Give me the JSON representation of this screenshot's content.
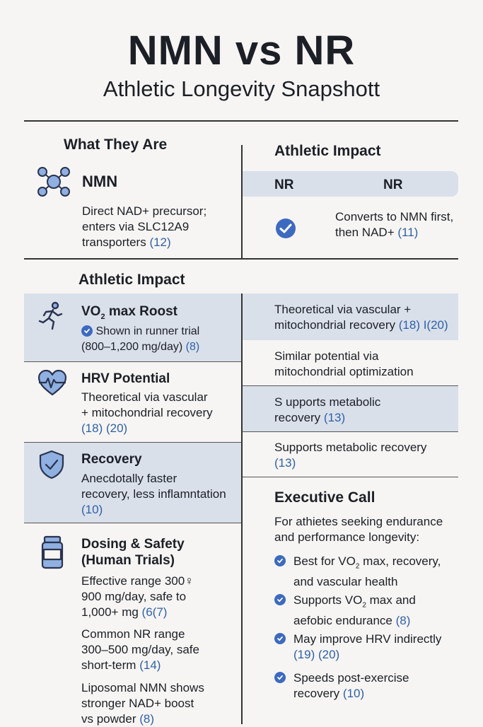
{
  "title": "NMN vs NR",
  "subtitle": "Athletic Longevity Snapshott",
  "what_they_are": {
    "heading": "What They Are",
    "name": "NMN",
    "line1": "Direct NAD+ precursor;",
    "line2": "enters via SLC12A9",
    "line3": "transporters",
    "ref": "(12)"
  },
  "athletic_impact_top": {
    "heading": "Athletic Impact",
    "nr_left": "NR",
    "nr_right": "NR",
    "line1": "Converts to NMN first,",
    "line2": "then NAD+",
    "ref": "(11)"
  },
  "left_heading": "Athletic Impact",
  "vo2": {
    "title_a": "VO",
    "title_sub": "2",
    "title_b": " max Roost",
    "line1": "Shown in runner trial",
    "line2": "(800–1,200 mg/day)",
    "ref": "(8)"
  },
  "hrv": {
    "title": "HRV Potential",
    "line1": "Theoretical via vascular",
    "line2": "+ mitochondrial recovery",
    "ref": "(18) (20)"
  },
  "recovery": {
    "title": "Recovery",
    "line1": "Anecdotally faster",
    "line2": "recovery, less inflamntation",
    "ref": "(10)"
  },
  "dosing": {
    "title1": "Dosing & Safety",
    "title2": "(Human Trials)",
    "p1_l1": "Effective range 300♀",
    "p1_l2": "900 mg/day, safe to",
    "p1_l3": "1,000+ mg",
    "p1_ref": "(6(7)",
    "p2_l1": "Common NR range",
    "p2_l2": "300–500 mg/day, safe",
    "p2_l3": "short-term",
    "p2_ref": "(14)",
    "p3_l1": "Liposomal NMN shows",
    "p3_l2": "stronger NAD+ boost",
    "p3_l3": "vs powder",
    "p3_ref": "(8)"
  },
  "right_rows": {
    "r1_l1": "Theoretical via vascular +",
    "r1_l2": "mitochondrial recovery",
    "r1_ref": "(18) I(20)",
    "r2_l1": "Similar potential via",
    "r2_l2": "mitochondrial optimization",
    "r3_l1": "S upports metabolic",
    "r3_l2": "recovery",
    "r3_ref": "(13)",
    "r4_l1": "Supports metabolic recovery",
    "r4_ref": "(13)"
  },
  "executive": {
    "heading": "Executive Call",
    "intro1": "For athietes seeking endurance",
    "intro2": "and performance longevity:",
    "b1_l1a": "Best for VO",
    "b1_sub": "2",
    "b1_l1b": " max, recovery,",
    "b1_l2": "and vascular health",
    "b2_l1a": "Supports VO",
    "b2_sub": "2",
    "b2_l1b": " max and",
    "b2_l2": "aefobic endurance",
    "b2_ref": "(8)",
    "b3_l1": "May improve HRV indirectly",
    "b3_ref": "(19) (20)",
    "b4_l1": "Speeds post-exercise",
    "b4_l2": "recovery",
    "b4_ref": "(10)"
  },
  "colors": {
    "accent": "#3d6ac0",
    "shade": "#d9e0ea",
    "ref": "#2f5fa8"
  },
  "icons": [
    "molecule-icon",
    "check-icon",
    "runner-icon",
    "heart-pulse-icon",
    "shield-check-icon",
    "supplement-bottle-icon"
  ]
}
